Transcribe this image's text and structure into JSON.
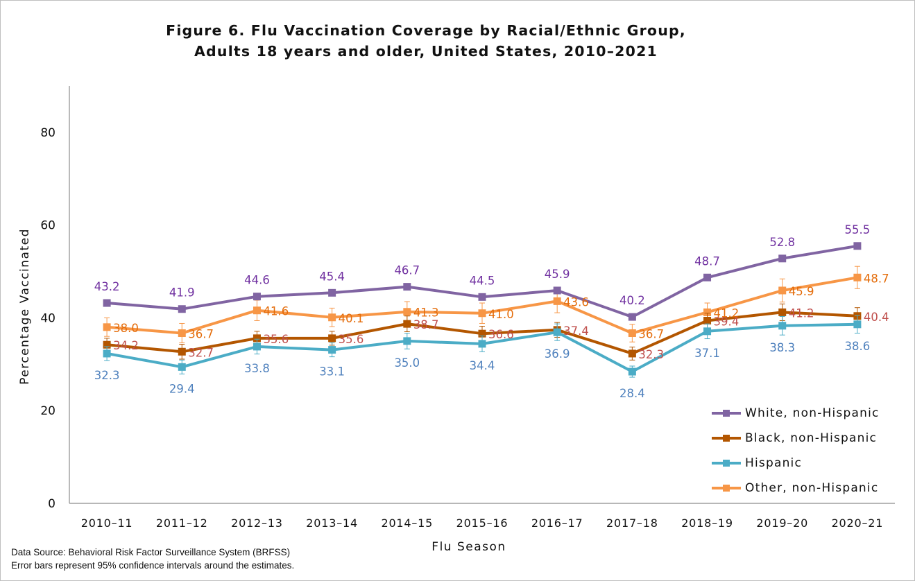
{
  "chart_data": {
    "type": "line",
    "title_line1": "Figure 6. Flu Vaccination Coverage by Racial/Ethnic Group,",
    "title_line2": "Adults 18 years and older, United States, 2010–2021",
    "xlabel": "Flu Season",
    "ylabel": "Percentage Vaccinated",
    "ylim": [
      0,
      90
    ],
    "yticks": [
      0,
      20,
      40,
      60,
      80
    ],
    "grid": false,
    "legend_position": "bottom-right",
    "categories": [
      "2010–11",
      "2011–12",
      "2012–13",
      "2013–14",
      "2014–15",
      "2015–16",
      "2016–17",
      "2017–18",
      "2018–19",
      "2019–20",
      "2020–21"
    ],
    "series": [
      {
        "name": "White, non-Hispanic",
        "color": "#8064a2",
        "label_color": "#7030a0",
        "label_pos": "above",
        "values": [
          43.2,
          41.9,
          44.6,
          45.4,
          46.7,
          44.5,
          45.9,
          40.2,
          48.7,
          52.8,
          55.5
        ],
        "labels": [
          "43.2",
          "41.9",
          "44.6",
          "45.4",
          "46.7",
          "44.5",
          "45.9",
          "40.2",
          "48.7",
          "52.8",
          "55.5"
        ]
      },
      {
        "name": "Black, non-Hispanic",
        "color": "#b35600",
        "label_color": "#c0504d",
        "label_pos": "right",
        "values": [
          34.2,
          32.7,
          35.6,
          35.6,
          38.7,
          36.6,
          37.4,
          32.3,
          39.4,
          41.2,
          40.4
        ],
        "labels": [
          "34.2",
          "32.7",
          "35.6",
          "35.6",
          "38.7",
          "36.6",
          "37.4",
          "32.3",
          "39.4",
          "41.2",
          "40.4"
        ],
        "ci": [
          1.4,
          1.6,
          1.5,
          1.5,
          1.7,
          1.6,
          1.6,
          1.4,
          1.6,
          1.8,
          1.8
        ]
      },
      {
        "name": "Hispanic",
        "color": "#4bacc6",
        "label_color": "#4f81bd",
        "label_pos": "below",
        "values": [
          32.3,
          29.4,
          33.8,
          33.1,
          35.0,
          34.4,
          36.9,
          28.4,
          37.1,
          38.3,
          38.6
        ],
        "labels": [
          "32.3",
          "29.4",
          "33.8",
          "33.1",
          "35.0",
          "34.4",
          "36.9",
          "28.4",
          "37.1",
          "38.3",
          "38.6"
        ],
        "ci": [
          1.5,
          1.5,
          1.6,
          1.5,
          1.7,
          1.7,
          1.8,
          1.2,
          1.6,
          2.0,
          1.9
        ]
      },
      {
        "name": "Other, non-Hispanic",
        "color": "#f79646",
        "label_color": "#e46c0a",
        "label_pos": "right",
        "values": [
          38.0,
          36.7,
          41.6,
          40.1,
          41.3,
          41.0,
          43.6,
          36.7,
          41.2,
          45.9,
          48.7
        ],
        "labels": [
          "38.0",
          "36.7",
          "41.6",
          "40.1",
          "41.3",
          "41.0",
          "43.6",
          "36.7",
          "41.2",
          "45.9",
          "48.7"
        ],
        "ci": [
          2.0,
          2.1,
          2.2,
          2.0,
          2.2,
          2.2,
          2.5,
          1.9,
          2.0,
          2.5,
          2.4
        ]
      }
    ]
  },
  "footnote": {
    "source": "Data Source: Behavioral Risk Factor Surveillance System (BRFSS)",
    "error_bars": "Error bars represent 95% confidence intervals around the estimates."
  }
}
